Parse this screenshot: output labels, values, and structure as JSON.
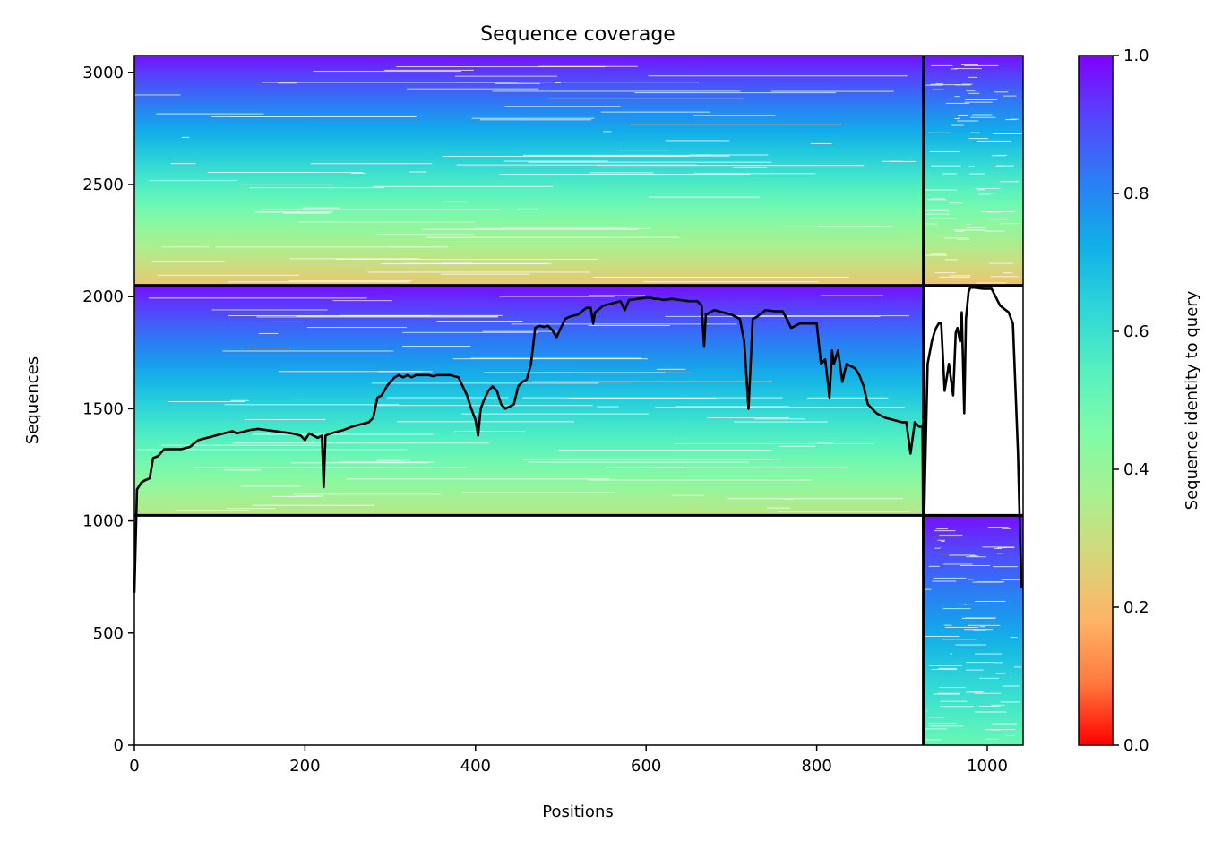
{
  "chart_data": {
    "type": "heatmap",
    "title": "Sequence coverage",
    "xlabel": "Positions",
    "ylabel": "Sequences",
    "xlim": [
      0,
      1042
    ],
    "ylim": [
      0,
      3075
    ],
    "x_ticks": [
      0,
      200,
      400,
      600,
      800,
      1000
    ],
    "y_ticks": [
      0,
      500,
      1000,
      1500,
      2000,
      2500,
      3000
    ],
    "grid": false,
    "blocks": [
      {
        "x": [
          0,
          925
        ],
        "y": [
          2050,
          3075
        ],
        "identity_top": 0.98,
        "identity_bottom": 0.23
      },
      {
        "x": [
          925,
          1042
        ],
        "y": [
          2050,
          3075
        ],
        "identity_top": 0.98,
        "identity_bottom": 0.22
      },
      {
        "x": [
          0,
          925
        ],
        "y": [
          1025,
          2050
        ],
        "identity_top": 0.98,
        "identity_bottom": 0.33
      },
      {
        "x": [
          925,
          1042
        ],
        "y": [
          0,
          1025
        ],
        "identity_top": 0.98,
        "identity_bottom": 0.5
      }
    ],
    "block_dividers": {
      "x": [
        925
      ],
      "y": [
        1025,
        2050
      ]
    },
    "coverage_line": {
      "x": [
        0,
        3,
        8,
        12,
        18,
        22,
        28,
        35,
        45,
        55,
        65,
        75,
        85,
        95,
        105,
        115,
        120,
        125,
        135,
        145,
        155,
        165,
        175,
        185,
        195,
        200,
        205,
        210,
        215,
        220,
        222,
        224,
        227,
        235,
        245,
        255,
        265,
        275,
        280,
        285,
        290,
        296,
        300,
        305,
        310,
        315,
        320,
        325,
        330,
        340,
        345,
        350,
        355,
        360,
        370,
        380,
        385,
        390,
        395,
        400,
        403,
        406,
        410,
        415,
        420,
        425,
        430,
        435,
        440,
        445,
        450,
        455,
        460,
        465,
        470,
        475,
        480,
        485,
        490,
        495,
        500,
        505,
        510,
        520,
        530,
        535,
        538,
        540,
        550,
        560,
        570,
        575,
        580,
        590,
        600,
        605,
        610,
        615,
        620,
        630,
        640,
        650,
        660,
        665,
        668,
        670,
        680,
        690,
        700,
        710,
        715,
        720,
        725,
        730,
        740,
        750,
        760,
        765,
        770,
        780,
        790,
        795,
        800,
        805,
        810,
        815,
        818,
        820,
        825,
        830,
        835,
        840,
        845,
        850,
        855,
        860,
        870,
        880,
        890,
        900,
        905,
        910,
        915,
        920,
        924,
        925,
        927,
        930,
        935,
        938,
        940,
        943,
        946,
        950,
        955,
        960,
        963,
        965,
        968,
        970,
        973,
        975,
        978,
        980,
        985,
        995,
        1005,
        1015,
        1025,
        1030,
        1036,
        1040
      ],
      "y": [
        680,
        1140,
        1170,
        1180,
        1190,
        1280,
        1290,
        1320,
        1320,
        1320,
        1330,
        1360,
        1370,
        1380,
        1390,
        1400,
        1390,
        1395,
        1405,
        1410,
        1405,
        1400,
        1395,
        1390,
        1380,
        1360,
        1390,
        1380,
        1370,
        1380,
        1150,
        1380,
        1385,
        1395,
        1405,
        1420,
        1430,
        1440,
        1460,
        1550,
        1560,
        1600,
        1620,
        1640,
        1650,
        1640,
        1650,
        1640,
        1650,
        1650,
        1650,
        1645,
        1650,
        1650,
        1650,
        1640,
        1600,
        1560,
        1500,
        1450,
        1380,
        1500,
        1540,
        1580,
        1600,
        1580,
        1520,
        1500,
        1510,
        1520,
        1600,
        1620,
        1630,
        1700,
        1860,
        1870,
        1865,
        1870,
        1850,
        1820,
        1860,
        1900,
        1910,
        1920,
        1950,
        1950,
        1880,
        1930,
        1960,
        1970,
        1980,
        1940,
        1985,
        1990,
        1995,
        1995,
        1990,
        1990,
        1985,
        1990,
        1985,
        1980,
        1980,
        1960,
        1780,
        1920,
        1940,
        1930,
        1920,
        1900,
        1800,
        1500,
        1900,
        1910,
        1940,
        1935,
        1935,
        1900,
        1860,
        1880,
        1880,
        1880,
        1880,
        1700,
        1720,
        1550,
        1760,
        1700,
        1760,
        1620,
        1700,
        1690,
        1680,
        1650,
        1600,
        1520,
        1480,
        1460,
        1450,
        1440,
        1440,
        1300,
        1440,
        1420,
        1420,
        840,
        1200,
        1700,
        1800,
        1840,
        1860,
        1880,
        1880,
        1580,
        1700,
        1560,
        1840,
        1860,
        1800,
        1930,
        1480,
        1900,
        2020,
        2040,
        2040,
        2035,
        2035,
        1960,
        1930,
        1880,
        1300,
        700
      ]
    },
    "colorbar": {
      "label": "Sequence identity to query",
      "range": [
        0,
        1
      ],
      "ticks": [
        "0.0",
        "0.2",
        "0.4",
        "0.6",
        "0.8",
        "1.0"
      ],
      "colormap": "rainbow_r",
      "colors": [
        "#ff0000",
        "#ff7a3e",
        "#ffb466",
        "#d6d67a",
        "#a8f090",
        "#7ffba8",
        "#54f0c0",
        "#2cd5d8",
        "#10aee8",
        "#2a7ef4",
        "#5446fb",
        "#8000ff"
      ]
    }
  }
}
